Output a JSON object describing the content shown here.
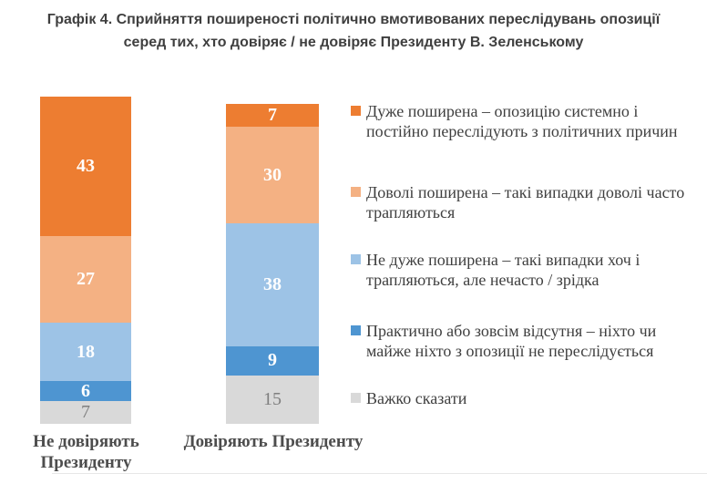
{
  "title": {
    "line1": "Графік 4. Сприйняття поширеності політично вмотивованих переслідувань опозиції",
    "line2": "серед тих, хто довіряє / не довіряє Президенту В. Зеленському"
  },
  "chart_data": {
    "type": "bar",
    "subtype": "stacked-column",
    "title": "Графік 4. Сприйняття поширеності політично вмотивованих переслідувань опозиції серед тих, хто довіряє / не довіряє Президенту В. Зеленському",
    "categories": [
      "Не довіряють Президенту",
      "Довіряють Президенту"
    ],
    "series": [
      {
        "name": "Дуже поширена – опозицію системно і постійно переслідують з політичних причин",
        "color": "#ED7D31",
        "label_color": "#FFFFFF",
        "values": [
          43,
          7
        ]
      },
      {
        "name": "Доволі поширена – такі випадки доволі часто трапляються",
        "color": "#F4B183",
        "label_color": "#FFFFFF",
        "values": [
          27,
          30
        ]
      },
      {
        "name": "Не дуже поширена – такі випадки хоч і трапляються, але нечасто / зрідка",
        "color": "#9DC3E6",
        "label_color": "#FFFFFF",
        "values": [
          18,
          38
        ]
      },
      {
        "name": "Практично або зовсім відсутня – ніхто чи майже ніхто з опозиції не переслідується",
        "color": "#4E95D1",
        "label_color": "#FFFFFF",
        "values": [
          6,
          9
        ]
      },
      {
        "name": "Важко сказати",
        "color": "#D9D9D9",
        "label_color": "#7F7F7F",
        "muted_label": true,
        "values": [
          7,
          15
        ]
      }
    ],
    "totals": [
      101,
      99
    ],
    "legend_position": "right",
    "grid": false,
    "data_labels": "inside-center"
  },
  "colors": {
    "title_text": "#3F3F3F",
    "legend_text": "#3F3F3F",
    "category_text": "#4D4D4D",
    "muted_value_text": "#7F7F7F"
  }
}
